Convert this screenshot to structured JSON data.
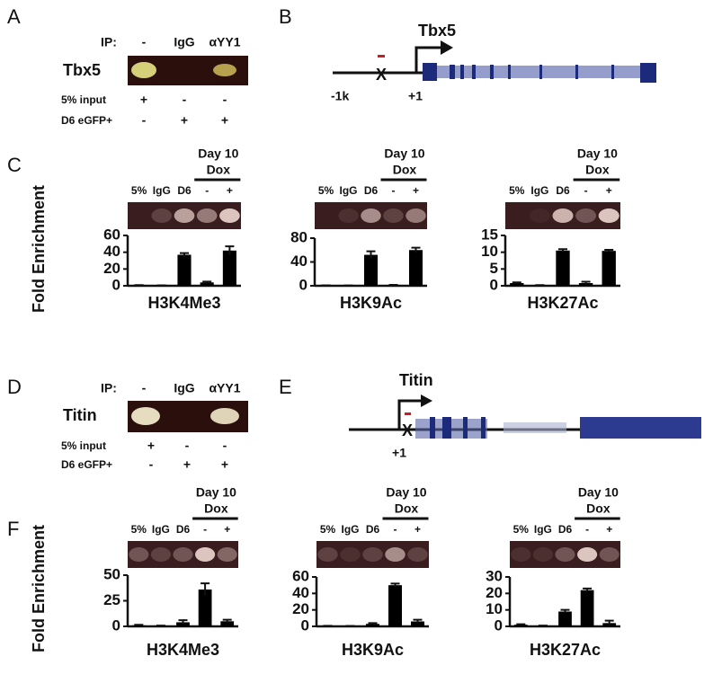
{
  "panel_a": {
    "label": "A",
    "ip_label": "IP:",
    "lanes": [
      "-",
      "IgG",
      "αYY1"
    ],
    "gene": "Tbx5",
    "rows": [
      {
        "name": "5% input",
        "marks": [
          "+",
          "-",
          "-"
        ]
      },
      {
        "name": "D6 eGFP+",
        "marks": [
          "-",
          "+",
          "+"
        ]
      }
    ]
  },
  "panel_b": {
    "label": "B",
    "gene": "Tbx5",
    "upstream": "-1k",
    "site": "X",
    "tss": "+1"
  },
  "panel_c": {
    "label": "C"
  },
  "panel_d": {
    "label": "D",
    "ip_label": "IP:",
    "lanes": [
      "-",
      "IgG",
      "αYY1"
    ],
    "gene": "Titin",
    "rows": [
      {
        "name": "5% input",
        "marks": [
          "+",
          "-",
          "-"
        ]
      },
      {
        "name": "D6 eGFP+",
        "marks": [
          "-",
          "+",
          "+"
        ]
      }
    ]
  },
  "panel_e": {
    "label": "E",
    "gene": "Titin",
    "site": "X",
    "tss": "+1"
  },
  "panel_f": {
    "label": "F"
  },
  "chart_data": [
    {
      "type": "bar",
      "title": "H3K4Me3",
      "ylabel": "Fold Enrichment",
      "group_label": [
        "Day 10",
        "Dox"
      ],
      "categories": [
        "5%",
        "IgG",
        "D6",
        "-",
        "+"
      ],
      "values": [
        0.5,
        0.3,
        37,
        4,
        42
      ],
      "errors": [
        0.3,
        0.2,
        2,
        1,
        5
      ],
      "color": "#000000",
      "ylim": [
        0,
        60
      ],
      "yticks": [
        0,
        20,
        40,
        60
      ]
    },
    {
      "type": "bar",
      "title": "H3K9Ac",
      "group_label": [
        "Day 10",
        "Dox"
      ],
      "categories": [
        "5%",
        "IgG",
        "D6",
        "-",
        "+"
      ],
      "values": [
        0.5,
        0.3,
        52,
        1,
        60
      ],
      "errors": [
        0.2,
        0.2,
        6,
        0.5,
        4
      ],
      "color": "#000000",
      "ylim": [
        0,
        80
      ],
      "yticks": [
        0,
        40,
        80
      ]
    },
    {
      "type": "bar",
      "title": "H3K27Ac",
      "group_label": [
        "Day 10",
        "Dox"
      ],
      "categories": [
        "5%",
        "IgG",
        "D6",
        "-",
        "+"
      ],
      "values": [
        0.8,
        0.1,
        10.5,
        0.8,
        10.4
      ],
      "errors": [
        0.2,
        0.1,
        0.4,
        0.4,
        0.3
      ],
      "color": "#000000",
      "ylim": [
        0,
        15
      ],
      "yticks": [
        0,
        5,
        10,
        15
      ]
    },
    {
      "type": "bar",
      "title": "H3K4Me3",
      "ylabel": "Fold Enrichment",
      "group_label": [
        "Day 10",
        "Dox"
      ],
      "categories": [
        "5%",
        "IgG",
        "D6",
        "-",
        "+"
      ],
      "values": [
        1,
        0.5,
        4,
        36,
        5
      ],
      "errors": [
        0.5,
        0.3,
        2,
        6,
        1.5
      ],
      "color": "#000000",
      "ylim": [
        0,
        50
      ],
      "yticks": [
        0,
        25,
        50
      ]
    },
    {
      "type": "bar",
      "title": "H3K9Ac",
      "group_label": [
        "Day 10",
        "Dox"
      ],
      "categories": [
        "5%",
        "IgG",
        "D6",
        "-",
        "+"
      ],
      "values": [
        0.5,
        0.3,
        3,
        50,
        6
      ],
      "errors": [
        0.2,
        0.2,
        1,
        2,
        2
      ],
      "color": "#000000",
      "ylim": [
        0,
        60
      ],
      "yticks": [
        0,
        20,
        40,
        60
      ]
    },
    {
      "type": "bar",
      "title": "H3K27Ac",
      "group_label": [
        "Day 10",
        "Dox"
      ],
      "categories": [
        "5%",
        "IgG",
        "D6",
        "-",
        "+"
      ],
      "values": [
        1,
        0.3,
        9,
        22,
        2
      ],
      "errors": [
        0.3,
        0.2,
        1,
        1,
        1.5
      ],
      "color": "#000000",
      "ylim": [
        0,
        30
      ],
      "yticks": [
        0,
        10,
        20,
        30
      ]
    }
  ]
}
